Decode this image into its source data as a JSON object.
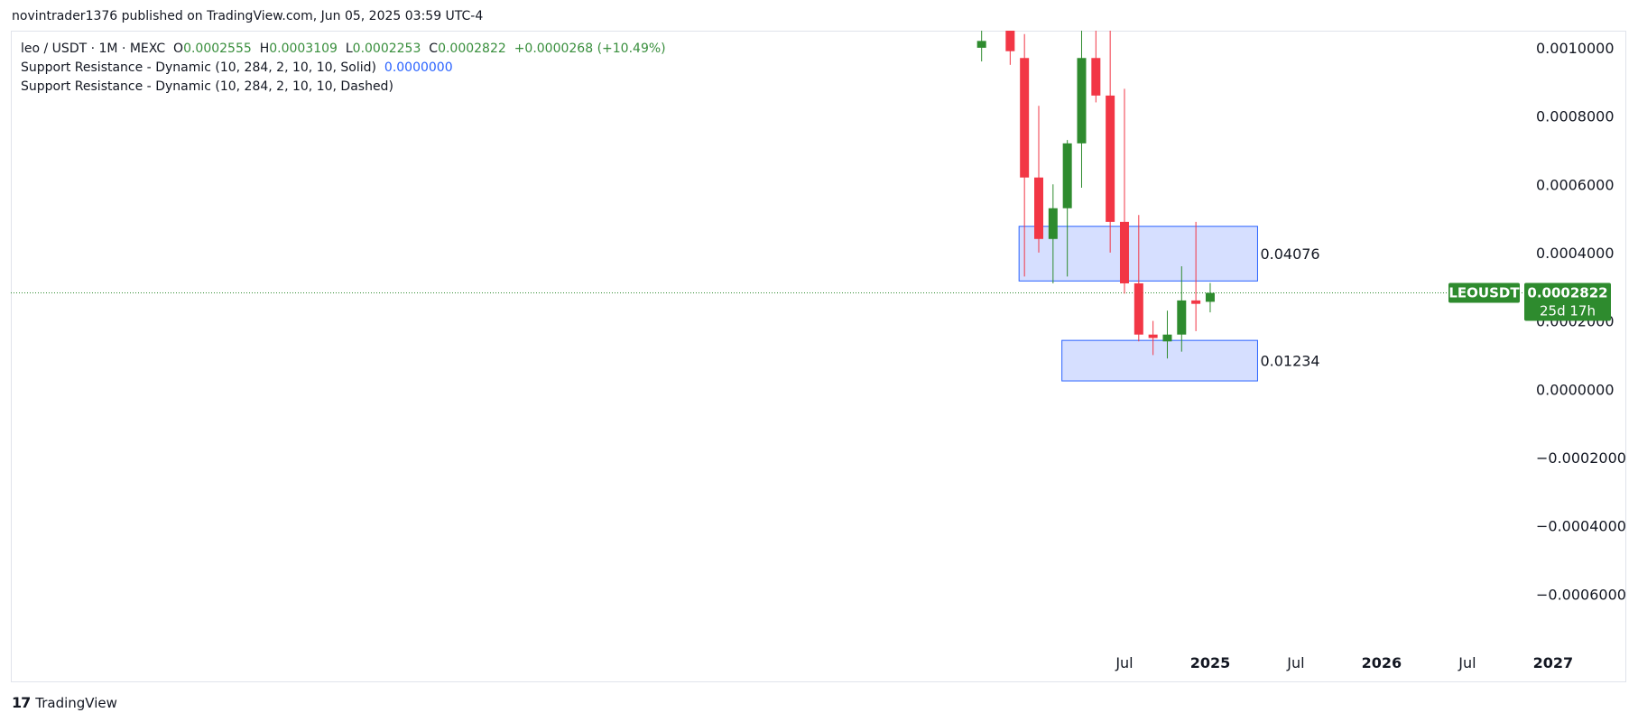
{
  "header": {
    "published": "novintrader1376 published on TradingView.com, Jun 05, 2025 03:59 UTC-4"
  },
  "legend": {
    "symbol": "leo / USDT · 1M · MEXC",
    "o_label": "O",
    "o_value": "0.0002555",
    "h_label": "H",
    "h_value": "0.0003109",
    "l_label": "L",
    "l_value": "0.0002253",
    "c_label": "C",
    "c_value": "0.0002822",
    "change": "+0.0000268 (+10.49%)",
    "indicator1": "Support Resistance - Dynamic (10, 284, 2, 10, 10, Solid)",
    "indicator1_value": "0.0000000",
    "indicator2": "Support Resistance - Dynamic (10, 284, 2, 10, 10, Dashed)"
  },
  "footer": {
    "brand": "TradingView",
    "logo": "17"
  },
  "colors": {
    "up": "#2e8b2e",
    "down": "#f23645",
    "zone_fill": "#d1dcff",
    "zone_stroke": "#2962ff",
    "tag": "#2e8b2e"
  },
  "chart_data": {
    "type": "candlestick",
    "symbol": "LEOUSDT",
    "ylim": [
      -0.00075,
      0.00105
    ],
    "y_ticks": [
      "0.0010000",
      "0.0008000",
      "0.0006000",
      "0.0004000",
      "0.0002000",
      "0.0000000",
      "−0.0002000",
      "−0.0004000",
      "−0.0006000"
    ],
    "y_tick_values": [
      0.001,
      0.0008,
      0.0006,
      0.0004,
      0.0002,
      0,
      -0.0002,
      -0.0004,
      -0.0006
    ],
    "x_ticks": [
      {
        "label": "Jul",
        "month": 6
      },
      {
        "label": "2025",
        "month": 12
      },
      {
        "label": "Jul",
        "month": 18
      },
      {
        "label": "2026",
        "month": 24
      },
      {
        "label": "Jul",
        "month": 30
      },
      {
        "label": "2027",
        "month": 36
      }
    ],
    "x_tick_bold": [
      false,
      true,
      false,
      true,
      false,
      true
    ],
    "candles": [
      {
        "m": -4,
        "o": 0.001,
        "h": 0.00106,
        "l": 0.00096,
        "c": 0.00102
      },
      {
        "m": -2,
        "o": 0.00106,
        "h": 0.00106,
        "l": 0.00095,
        "c": 0.00099
      },
      {
        "m": -1,
        "o": 0.00097,
        "h": 0.00104,
        "l": 0.00033,
        "c": 0.00062
      },
      {
        "m": 0,
        "o": 0.00062,
        "h": 0.00083,
        "l": 0.0004,
        "c": 0.00044
      },
      {
        "m": 1,
        "o": 0.00044,
        "h": 0.0006,
        "l": 0.00031,
        "c": 0.00053
      },
      {
        "m": 2,
        "o": 0.00053,
        "h": 0.00073,
        "l": 0.00033,
        "c": 0.00072
      },
      {
        "m": 3,
        "o": 0.00072,
        "h": 0.00106,
        "l": 0.00059,
        "c": 0.00097
      },
      {
        "m": 4,
        "o": 0.00097,
        "h": 0.00106,
        "l": 0.00084,
        "c": 0.00086
      },
      {
        "m": 5,
        "o": 0.00086,
        "h": 0.00106,
        "l": 0.0004,
        "c": 0.00049
      },
      {
        "m": 6,
        "o": 0.00049,
        "h": 0.00088,
        "l": 0.00028,
        "c": 0.00031
      },
      {
        "m": 7,
        "o": 0.00031,
        "h": 0.00051,
        "l": 0.00014,
        "c": 0.00016
      },
      {
        "m": 8,
        "o": 0.00016,
        "h": 0.0002,
        "l": 0.0001,
        "c": 0.00015
      },
      {
        "m": 9,
        "o": 0.00014,
        "h": 0.00023,
        "l": 9e-05,
        "c": 0.00016
      },
      {
        "m": 10,
        "o": 0.00016,
        "h": 0.00036,
        "l": 0.00011,
        "c": 0.00026
      },
      {
        "m": 11,
        "o": 0.00026,
        "h": 0.00049,
        "l": 0.00017,
        "c": 0.00025
      },
      {
        "m": 12,
        "o": 0.000256,
        "h": 0.000311,
        "l": 0.000225,
        "c": 0.000282
      }
    ],
    "zones": [
      {
        "label": "0.04076",
        "top": 0.000477,
        "bottom": 0.000317,
        "from_month": -1,
        "to_month": 15
      },
      {
        "label": "0.01234",
        "top": 0.000143,
        "bottom": 2.43e-05,
        "from_month": 2,
        "to_month": 15
      }
    ],
    "last_price": 0.0002822,
    "price_tag": {
      "symbol": "LEOUSDT",
      "price": "0.0002822",
      "countdown": "25d 17h"
    }
  }
}
